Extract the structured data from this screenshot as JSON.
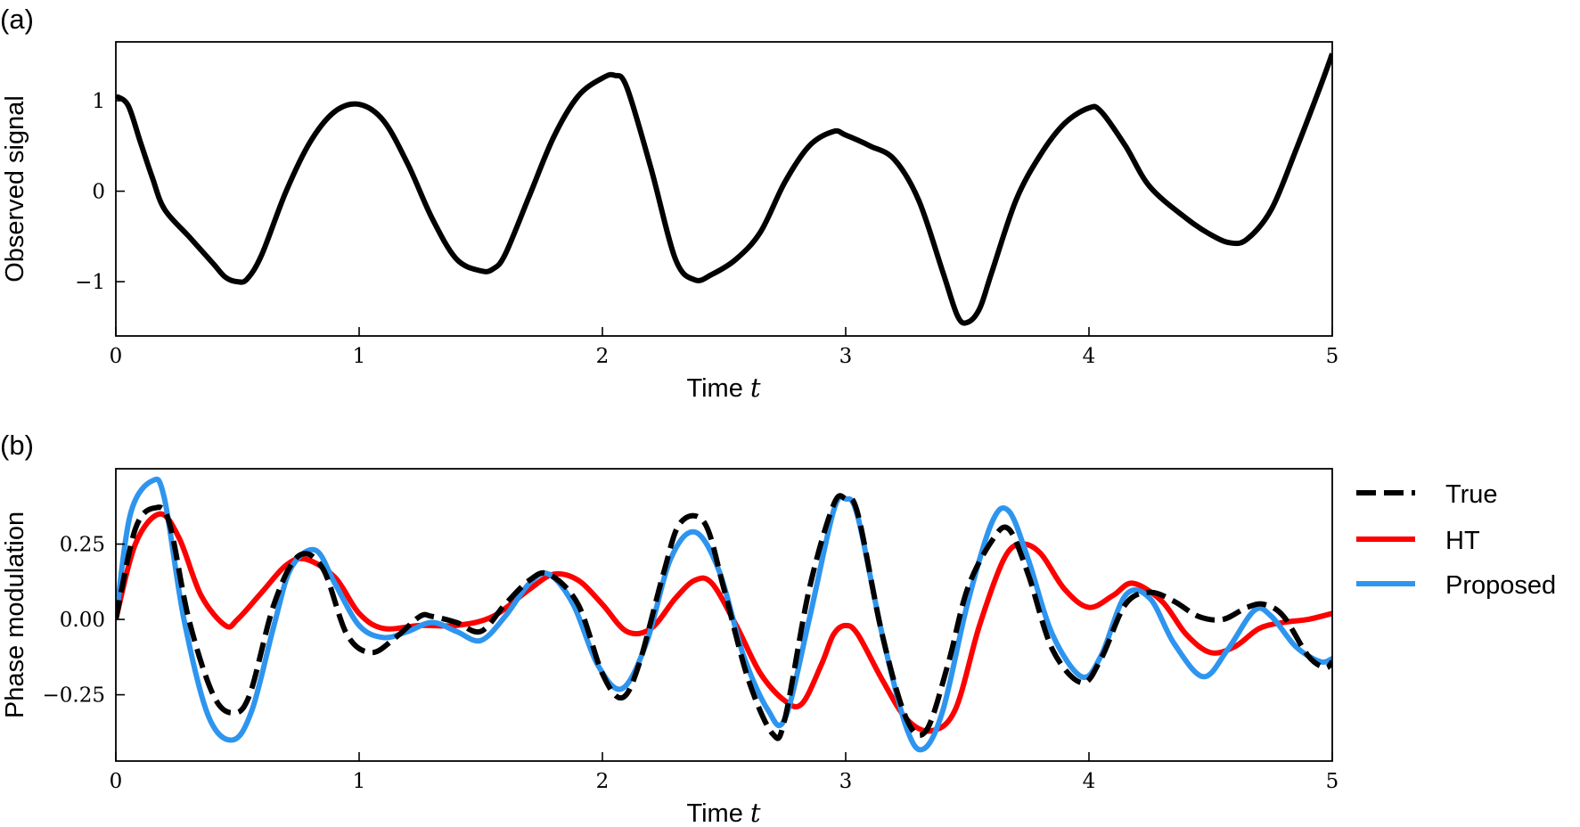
{
  "chart_data": [
    {
      "panel_label": "(a)",
      "type": "line",
      "xlabel": "Time",
      "xlabel_var": "t",
      "ylabel": "Observed signal",
      "xlim": [
        0,
        5
      ],
      "ylim": [
        -1.6,
        1.65
      ],
      "xticks": [
        0,
        1,
        2,
        3,
        4,
        5
      ],
      "xtick_labels": [
        "0",
        "1",
        "2",
        "3",
        "4",
        "5"
      ],
      "yticks": [
        -1,
        0,
        1
      ],
      "ytick_labels": [
        "−1",
        "0",
        "1"
      ],
      "tick_direction": "in",
      "grid": false,
      "series": [
        {
          "color": "#000000",
          "dash": "solid",
          "x": [
            0,
            0.05,
            0.1,
            0.15,
            0.2,
            0.3,
            0.4,
            0.45,
            0.5,
            0.54,
            0.6,
            0.7,
            0.8,
            0.9,
            1.0,
            1.1,
            1.2,
            1.3,
            1.4,
            1.5,
            1.55,
            1.6,
            1.7,
            1.8,
            1.9,
            2.0,
            2.05,
            2.1,
            2.2,
            2.3,
            2.38,
            2.45,
            2.55,
            2.65,
            2.75,
            2.85,
            2.95,
            3.0,
            3.1,
            3.2,
            3.3,
            3.4,
            3.46,
            3.5,
            3.55,
            3.6,
            3.7,
            3.8,
            3.9,
            4.0,
            4.05,
            4.15,
            4.25,
            4.4,
            4.5,
            4.58,
            4.65,
            4.75,
            4.85,
            4.95,
            5.0
          ],
          "y": [
            1.05,
            0.95,
            0.55,
            0.15,
            -0.2,
            -0.5,
            -0.8,
            -0.95,
            -1.0,
            -0.97,
            -0.7,
            0.0,
            0.55,
            0.88,
            0.96,
            0.78,
            0.3,
            -0.3,
            -0.75,
            -0.88,
            -0.86,
            -0.7,
            -0.05,
            0.6,
            1.05,
            1.25,
            1.28,
            1.15,
            0.25,
            -0.75,
            -0.98,
            -0.92,
            -0.75,
            -0.45,
            0.1,
            0.5,
            0.66,
            0.62,
            0.5,
            0.35,
            -0.1,
            -0.9,
            -1.38,
            -1.45,
            -1.3,
            -0.9,
            -0.1,
            0.4,
            0.75,
            0.92,
            0.88,
            0.5,
            0.05,
            -0.3,
            -0.48,
            -0.57,
            -0.53,
            -0.2,
            0.45,
            1.15,
            1.52
          ]
        }
      ]
    },
    {
      "panel_label": "(b)",
      "type": "line",
      "xlabel": "Time",
      "xlabel_var": "t",
      "ylabel": "Phase modulation",
      "xlim": [
        0,
        5
      ],
      "ylim": [
        -0.47,
        0.5
      ],
      "xticks": [
        0,
        1,
        2,
        3,
        4,
        5
      ],
      "xtick_labels": [
        "0",
        "1",
        "2",
        "3",
        "4",
        "5"
      ],
      "yticks": [
        -0.25,
        0,
        0.25
      ],
      "ytick_labels": [
        "−0.25",
        "0.00",
        "0.25"
      ],
      "tick_direction": "in",
      "grid": false,
      "legend_position": "outside-right-top",
      "series": [
        {
          "name": "True",
          "color": "#000000",
          "dash": "dashed",
          "x": [
            0,
            0.08,
            0.16,
            0.22,
            0.3,
            0.4,
            0.48,
            0.55,
            0.65,
            0.75,
            0.85,
            0.95,
            1.05,
            1.15,
            1.25,
            1.3,
            1.4,
            1.5,
            1.6,
            1.7,
            1.78,
            1.9,
            2.0,
            2.08,
            2.15,
            2.25,
            2.32,
            2.42,
            2.5,
            2.6,
            2.7,
            2.75,
            2.85,
            2.95,
            3.0,
            3.05,
            3.15,
            3.25,
            3.33,
            3.42,
            3.5,
            3.6,
            3.67,
            3.75,
            3.85,
            3.97,
            4.05,
            4.15,
            4.25,
            4.35,
            4.45,
            4.55,
            4.65,
            4.72,
            4.8,
            4.9,
            4.97,
            5.0
          ],
          "y": [
            0.0,
            0.3,
            0.37,
            0.32,
            0.0,
            -0.25,
            -0.31,
            -0.25,
            0.05,
            0.21,
            0.17,
            -0.05,
            -0.11,
            -0.06,
            0.01,
            0.01,
            -0.01,
            -0.04,
            0.05,
            0.13,
            0.15,
            0.05,
            -0.18,
            -0.26,
            -0.15,
            0.15,
            0.32,
            0.32,
            0.1,
            -0.2,
            -0.38,
            -0.33,
            0.1,
            0.38,
            0.4,
            0.35,
            -0.05,
            -0.33,
            -0.37,
            -0.15,
            0.1,
            0.26,
            0.3,
            0.15,
            -0.1,
            -0.21,
            -0.13,
            0.05,
            0.09,
            0.06,
            0.01,
            0.0,
            0.04,
            0.05,
            0.01,
            -0.12,
            -0.16,
            -0.14
          ]
        },
        {
          "name": "HT",
          "color": "#ff0000",
          "dash": "solid",
          "x": [
            0,
            0.08,
            0.18,
            0.26,
            0.35,
            0.45,
            0.5,
            0.6,
            0.7,
            0.78,
            0.9,
            1.0,
            1.1,
            1.25,
            1.4,
            1.55,
            1.7,
            1.8,
            1.9,
            2.0,
            2.1,
            2.2,
            2.3,
            2.38,
            2.45,
            2.55,
            2.65,
            2.75,
            2.82,
            2.9,
            2.95,
            3.0,
            3.05,
            3.15,
            3.25,
            3.35,
            3.45,
            3.55,
            3.65,
            3.72,
            3.8,
            3.9,
            4.0,
            4.1,
            4.18,
            4.3,
            4.4,
            4.5,
            4.6,
            4.7,
            4.8,
            4.9,
            5.0
          ],
          "y": [
            0.0,
            0.25,
            0.35,
            0.27,
            0.08,
            -0.02,
            0.0,
            0.09,
            0.18,
            0.2,
            0.14,
            0.02,
            -0.03,
            -0.02,
            -0.02,
            0.01,
            0.1,
            0.15,
            0.13,
            0.05,
            -0.04,
            -0.03,
            0.07,
            0.13,
            0.12,
            -0.02,
            -0.18,
            -0.27,
            -0.28,
            -0.15,
            -0.05,
            -0.02,
            -0.05,
            -0.2,
            -0.33,
            -0.37,
            -0.3,
            -0.02,
            0.2,
            0.25,
            0.22,
            0.1,
            0.04,
            0.08,
            0.12,
            0.06,
            -0.05,
            -0.11,
            -0.09,
            -0.03,
            -0.01,
            0.0,
            0.02
          ]
        },
        {
          "name": "Proposed",
          "color": "#2e95ef",
          "dash": "solid",
          "x": [
            0,
            0.06,
            0.15,
            0.2,
            0.28,
            0.38,
            0.48,
            0.56,
            0.65,
            0.72,
            0.82,
            0.9,
            1.0,
            1.1,
            1.2,
            1.3,
            1.4,
            1.5,
            1.6,
            1.7,
            1.78,
            1.88,
            1.98,
            2.08,
            2.18,
            2.28,
            2.38,
            2.48,
            2.58,
            2.68,
            2.75,
            2.85,
            2.95,
            3.0,
            3.05,
            3.15,
            3.25,
            3.32,
            3.4,
            3.5,
            3.6,
            3.67,
            3.75,
            3.85,
            3.97,
            4.05,
            4.15,
            4.25,
            4.35,
            4.47,
            4.57,
            4.68,
            4.75,
            4.85,
            4.95,
            5.0
          ],
          "y": [
            0.0,
            0.35,
            0.46,
            0.4,
            0.0,
            -0.32,
            -0.4,
            -0.3,
            -0.02,
            0.17,
            0.23,
            0.12,
            -0.02,
            -0.06,
            -0.04,
            -0.01,
            -0.04,
            -0.07,
            0.01,
            0.12,
            0.15,
            0.05,
            -0.15,
            -0.23,
            -0.08,
            0.2,
            0.29,
            0.16,
            -0.12,
            -0.3,
            -0.33,
            0.0,
            0.36,
            0.4,
            0.34,
            -0.05,
            -0.36,
            -0.43,
            -0.3,
            0.05,
            0.32,
            0.36,
            0.2,
            -0.05,
            -0.19,
            -0.12,
            0.08,
            0.07,
            -0.08,
            -0.19,
            -0.1,
            0.03,
            0.01,
            -0.09,
            -0.14,
            -0.13
          ]
        }
      ]
    }
  ]
}
